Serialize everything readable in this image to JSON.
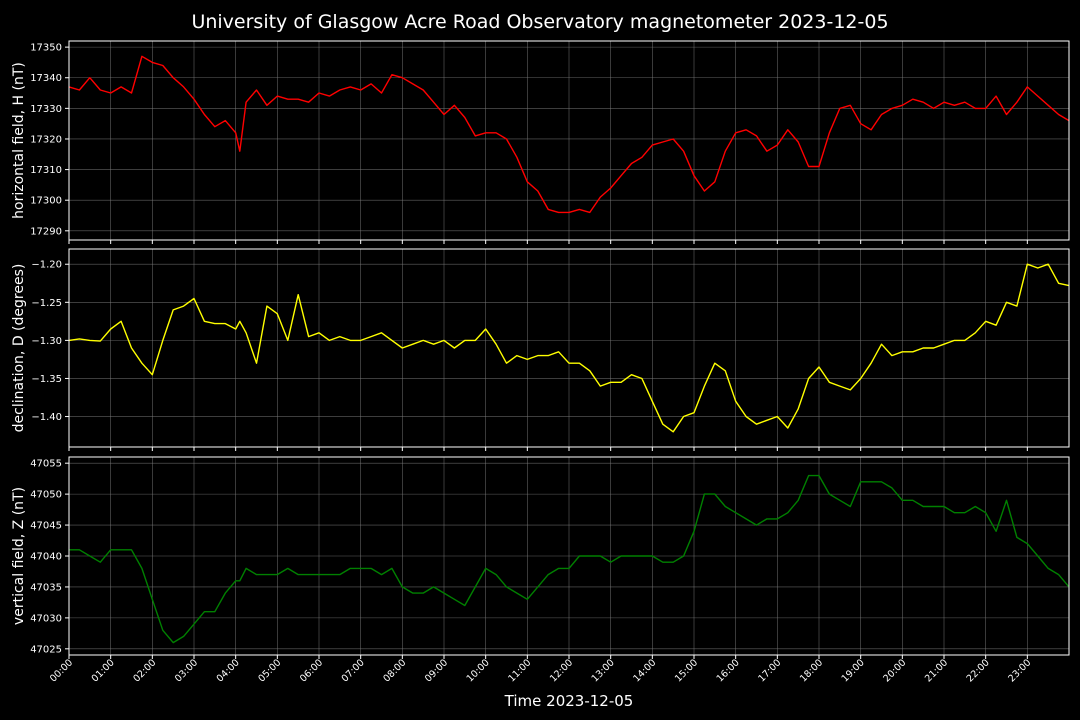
{
  "chart_data": {
    "type": "line",
    "title": "University of Glasgow Acre Road Observatory magnetometer 2023-12-05",
    "xlabel": "Time 2023-12-05",
    "x_ticks": [
      "00:00",
      "01:00",
      "02:00",
      "03:00",
      "04:00",
      "05:00",
      "06:00",
      "07:00",
      "08:00",
      "09:00",
      "10:00",
      "11:00",
      "12:00",
      "13:00",
      "14:00",
      "15:00",
      "16:00",
      "17:00",
      "18:00",
      "19:00",
      "20:00",
      "21:00",
      "22:00",
      "23:00"
    ],
    "x_unit": "hours",
    "xlim": [
      0,
      24
    ],
    "grid": true,
    "panels": [
      {
        "name": "horizontal field, H (nT)",
        "ylabel": "horizontal field, H (nT)",
        "color": "#ff0000",
        "ylim": [
          17287,
          17352
        ],
        "y_ticks": [
          17290,
          17300,
          17310,
          17320,
          17330,
          17340,
          17350
        ],
        "tick_labels": [
          "17290",
          "17300",
          "17310",
          "17320",
          "17330",
          "17340",
          "17350"
        ],
        "x": [
          0,
          0.25,
          0.5,
          0.75,
          1.0,
          1.25,
          1.5,
          1.75,
          2.0,
          2.25,
          2.5,
          2.75,
          3.0,
          3.25,
          3.5,
          3.75,
          4.0,
          4.1,
          4.25,
          4.5,
          4.75,
          5.0,
          5.25,
          5.5,
          5.75,
          6.0,
          6.25,
          6.5,
          6.75,
          7.0,
          7.25,
          7.5,
          7.75,
          8.0,
          8.25,
          8.5,
          8.75,
          9.0,
          9.25,
          9.5,
          9.75,
          10.0,
          10.25,
          10.5,
          10.75,
          11.0,
          11.25,
          11.5,
          11.75,
          12.0,
          12.25,
          12.5,
          12.75,
          13.0,
          13.25,
          13.5,
          13.75,
          14.0,
          14.25,
          14.5,
          14.75,
          15.0,
          15.25,
          15.5,
          15.75,
          16.0,
          16.25,
          16.5,
          16.75,
          17.0,
          17.25,
          17.5,
          17.75,
          18.0,
          18.25,
          18.5,
          18.75,
          19.0,
          19.25,
          19.5,
          19.75,
          20.0,
          20.25,
          20.5,
          20.75,
          21.0,
          21.25,
          21.5,
          21.75,
          22.0,
          22.25,
          22.5,
          22.75,
          23.0,
          23.25,
          23.5,
          23.75,
          24.0
        ],
        "y": [
          17337,
          17336,
          17340,
          17336,
          17335,
          17337,
          17335,
          17347,
          17345,
          17344,
          17340,
          17337,
          17333,
          17328,
          17324,
          17326,
          17322,
          17316,
          17332,
          17336,
          17331,
          17334,
          17333,
          17333,
          17332,
          17335,
          17334,
          17336,
          17337,
          17336,
          17338,
          17335,
          17341,
          17340,
          17338,
          17336,
          17332,
          17328,
          17331,
          17327,
          17321,
          17322,
          17322,
          17320,
          17314,
          17306,
          17303,
          17297,
          17296,
          17296,
          17297,
          17296,
          17301,
          17304,
          17308,
          17312,
          17314,
          17318,
          17319,
          17320,
          17316,
          17308,
          17303,
          17306,
          17316,
          17322,
          17323,
          17321,
          17316,
          17318,
          17323,
          17319,
          17311,
          17311,
          17322,
          17330,
          17331,
          17325,
          17323,
          17328,
          17330,
          17331,
          17333,
          17332,
          17330,
          17332,
          17331,
          17332,
          17330,
          17330,
          17334,
          17328,
          17332,
          17337,
          17334,
          17331,
          17328,
          17326
        ]
      },
      {
        "name": "declination, D (degrees)",
        "ylabel": "declination, D (degrees)",
        "color": "#ffff00",
        "ylim": [
          -1.44,
          -1.18
        ],
        "y_ticks": [
          -1.4,
          -1.35,
          -1.3,
          -1.25,
          -1.2
        ],
        "tick_labels": [
          "−1.40",
          "−1.35",
          "−1.30",
          "−1.25",
          "−1.20"
        ],
        "x": [
          0,
          0.25,
          0.5,
          0.75,
          1.0,
          1.25,
          1.5,
          1.75,
          2.0,
          2.25,
          2.5,
          2.75,
          3.0,
          3.25,
          3.5,
          3.75,
          4.0,
          4.1,
          4.25,
          4.5,
          4.75,
          5.0,
          5.25,
          5.5,
          5.75,
          6.0,
          6.25,
          6.5,
          6.75,
          7.0,
          7.25,
          7.5,
          7.75,
          8.0,
          8.25,
          8.5,
          8.75,
          9.0,
          9.25,
          9.5,
          9.75,
          10.0,
          10.25,
          10.5,
          10.75,
          11.0,
          11.25,
          11.5,
          11.75,
          12.0,
          12.25,
          12.5,
          12.75,
          13.0,
          13.25,
          13.5,
          13.75,
          14.0,
          14.25,
          14.5,
          14.75,
          15.0,
          15.25,
          15.5,
          15.75,
          16.0,
          16.25,
          16.5,
          16.75,
          17.0,
          17.25,
          17.5,
          17.75,
          18.0,
          18.25,
          18.5,
          18.75,
          19.0,
          19.25,
          19.5,
          19.75,
          20.0,
          20.25,
          20.5,
          20.75,
          21.0,
          21.25,
          21.5,
          21.75,
          22.0,
          22.25,
          22.5,
          22.75,
          23.0,
          23.25,
          23.5,
          23.75,
          24.0
        ],
        "y": [
          -1.3,
          -1.298,
          -1.3,
          -1.301,
          -1.285,
          -1.275,
          -1.31,
          -1.33,
          -1.345,
          -1.3,
          -1.26,
          -1.255,
          -1.245,
          -1.275,
          -1.278,
          -1.278,
          -1.285,
          -1.275,
          -1.29,
          -1.33,
          -1.255,
          -1.265,
          -1.3,
          -1.24,
          -1.295,
          -1.29,
          -1.3,
          -1.295,
          -1.3,
          -1.3,
          -1.295,
          -1.29,
          -1.3,
          -1.31,
          -1.305,
          -1.3,
          -1.305,
          -1.3,
          -1.31,
          -1.3,
          -1.3,
          -1.285,
          -1.305,
          -1.33,
          -1.32,
          -1.325,
          -1.32,
          -1.32,
          -1.315,
          -1.33,
          -1.33,
          -1.34,
          -1.36,
          -1.355,
          -1.355,
          -1.345,
          -1.35,
          -1.38,
          -1.41,
          -1.42,
          -1.4,
          -1.395,
          -1.36,
          -1.33,
          -1.34,
          -1.38,
          -1.4,
          -1.41,
          -1.405,
          -1.4,
          -1.415,
          -1.39,
          -1.35,
          -1.335,
          -1.355,
          -1.36,
          -1.365,
          -1.35,
          -1.33,
          -1.305,
          -1.32,
          -1.315,
          -1.315,
          -1.31,
          -1.31,
          -1.305,
          -1.3,
          -1.3,
          -1.29,
          -1.275,
          -1.28,
          -1.25,
          -1.255,
          -1.2,
          -1.205,
          -1.2,
          -1.225,
          -1.228
        ]
      },
      {
        "name": "vertical field, Z (nT)",
        "ylabel": "vertical field, Z (nT)",
        "color": "#008000",
        "ylim": [
          47024,
          47056
        ],
        "y_ticks": [
          47025,
          47030,
          47035,
          47040,
          47045,
          47050,
          47055
        ],
        "tick_labels": [
          "47025",
          "47030",
          "47035",
          "47040",
          "47045",
          "47050",
          "47055"
        ],
        "x": [
          0,
          0.25,
          0.5,
          0.75,
          1.0,
          1.25,
          1.5,
          1.75,
          2.0,
          2.25,
          2.5,
          2.75,
          3.0,
          3.25,
          3.5,
          3.75,
          4.0,
          4.1,
          4.25,
          4.5,
          4.75,
          5.0,
          5.25,
          5.5,
          5.75,
          6.0,
          6.25,
          6.5,
          6.75,
          7.0,
          7.25,
          7.5,
          7.75,
          8.0,
          8.25,
          8.5,
          8.75,
          9.0,
          9.25,
          9.5,
          9.75,
          10.0,
          10.25,
          10.5,
          10.75,
          11.0,
          11.25,
          11.5,
          11.75,
          12.0,
          12.25,
          12.5,
          12.75,
          13.0,
          13.25,
          13.5,
          13.75,
          14.0,
          14.25,
          14.5,
          14.75,
          15.0,
          15.25,
          15.5,
          15.75,
          16.0,
          16.25,
          16.5,
          16.75,
          17.0,
          17.25,
          17.5,
          17.75,
          18.0,
          18.25,
          18.5,
          18.75,
          19.0,
          19.25,
          19.5,
          19.75,
          20.0,
          20.25,
          20.5,
          20.75,
          21.0,
          21.25,
          21.5,
          21.75,
          22.0,
          22.25,
          22.5,
          22.75,
          23.0,
          23.25,
          23.5,
          23.75,
          24.0
        ],
        "y": [
          47041,
          47041,
          47040,
          47039,
          47041,
          47041,
          47041,
          47038,
          47033,
          47028,
          47026,
          47027,
          47029,
          47031,
          47031,
          47034,
          47036,
          47036,
          47038,
          47037,
          47037,
          47037,
          47038,
          47037,
          47037,
          47037,
          47037,
          47037,
          47038,
          47038,
          47038,
          47037,
          47038,
          47035,
          47034,
          47034,
          47035,
          47034,
          47033,
          47032,
          47035,
          47038,
          47037,
          47035,
          47034,
          47033,
          47035,
          47037,
          47038,
          47038,
          47040,
          47040,
          47040,
          47039,
          47040,
          47040,
          47040,
          47040,
          47039,
          47039,
          47040,
          47044,
          47050,
          47050,
          47048,
          47047,
          47046,
          47045,
          47046,
          47046,
          47047,
          47049,
          47053,
          47053,
          47050,
          47049,
          47048,
          47052,
          47052,
          47052,
          47051,
          47049,
          47049,
          47048,
          47048,
          47048,
          47047,
          47047,
          47048,
          47047,
          47044,
          47049,
          47043,
          47042,
          47040,
          47038,
          47037,
          47035
        ]
      }
    ]
  }
}
